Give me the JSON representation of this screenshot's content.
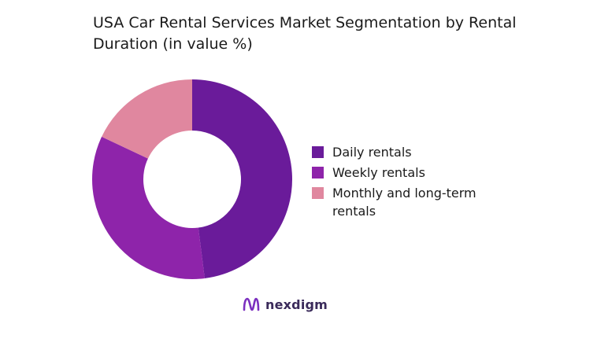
{
  "title": "USA Car Rental Services Market Segmentation by Rental Duration (in value %)",
  "brand": {
    "name": "nexdigm",
    "logo_icon": "nexdigm-logo-icon"
  },
  "chart_data": {
    "type": "pie",
    "variant": "donut",
    "title": "USA Car Rental Services Market Segmentation by Rental Duration (in value %)",
    "categories": [
      "Daily rentals",
      "Weekly rentals",
      "Monthly and long-term rentals"
    ],
    "values": [
      48,
      34,
      18
    ],
    "colors": [
      "#6a1b9a",
      "#8e24aa",
      "#e0879f"
    ],
    "legend_position": "right"
  }
}
